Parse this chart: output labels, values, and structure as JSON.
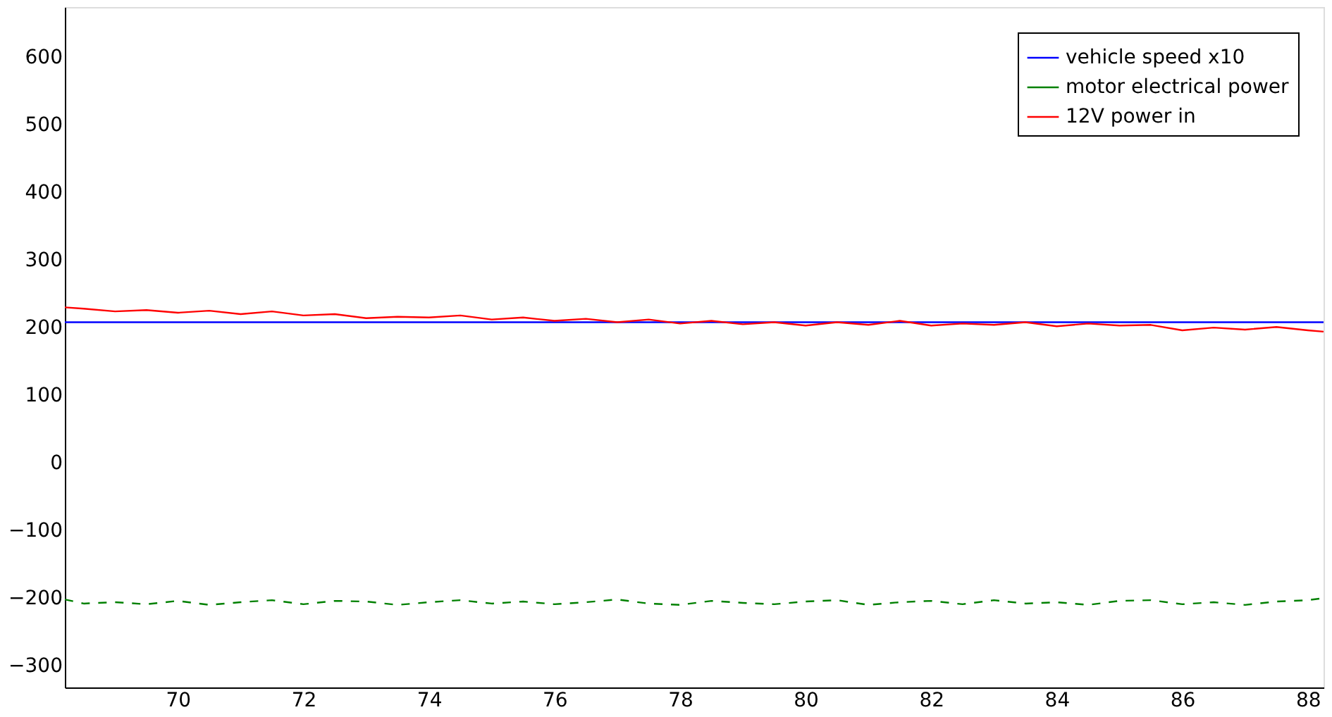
{
  "chart_data": {
    "type": "line",
    "xlim": [
      68.2,
      88.25
    ],
    "ylim": [
      -332,
      674
    ],
    "xticks": [
      70,
      72,
      74,
      76,
      78,
      80,
      82,
      84,
      86,
      88
    ],
    "yticks": [
      -300,
      -200,
      -100,
      0,
      100,
      200,
      300,
      400,
      500,
      600
    ],
    "x": [
      68.2,
      68.5,
      69,
      69.5,
      70,
      70.5,
      71,
      71.5,
      72,
      72.5,
      73,
      73.5,
      74,
      74.5,
      75,
      75.5,
      76,
      76.5,
      77,
      77.5,
      78,
      78.5,
      79,
      79.5,
      80,
      80.5,
      81,
      81.5,
      82,
      82.5,
      83,
      83.5,
      84,
      84.5,
      85,
      85.5,
      86,
      86.5,
      87,
      87.5,
      88,
      88.25
    ],
    "series": [
      {
        "name": "vehicle speed x10",
        "color": "#0000ff",
        "line_style": "solid",
        "values": [
          208,
          208,
          208,
          208,
          208,
          208,
          208,
          208,
          208,
          208,
          208,
          208,
          208,
          208,
          208,
          208,
          208,
          208,
          208,
          208,
          208,
          208,
          208,
          208,
          208,
          208,
          208,
          208,
          208,
          208,
          208,
          208,
          208,
          208,
          208,
          208,
          208,
          208,
          208,
          208,
          208,
          208
        ]
      },
      {
        "name": "motor electrical power",
        "color": "#008000",
        "line_style": "dashed",
        "values": [
          -202,
          -208,
          -206,
          -209,
          -204,
          -210,
          -206,
          -203,
          -209,
          -204,
          -205,
          -210,
          -206,
          -203,
          -208,
          -205,
          -209,
          -206,
          -202,
          -208,
          -210,
          -204,
          -207,
          -209,
          -205,
          -203,
          -210,
          -206,
          -204,
          -209,
          -203,
          -208,
          -206,
          -210,
          -204,
          -203,
          -209,
          -206,
          -210,
          -205,
          -203,
          -200
        ]
      },
      {
        "name": "12V power in",
        "color": "#ff0000",
        "line_style": "solid",
        "values": [
          230,
          228,
          224,
          226,
          222,
          225,
          220,
          224,
          218,
          220,
          214,
          216,
          215,
          218,
          212,
          215,
          210,
          213,
          208,
          212,
          206,
          210,
          205,
          208,
          203,
          208,
          204,
          210,
          203,
          206,
          204,
          208,
          202,
          206,
          203,
          204,
          196,
          200,
          197,
          201,
          196,
          194
        ]
      }
    ],
    "legend": "top right",
    "grid": false
  }
}
